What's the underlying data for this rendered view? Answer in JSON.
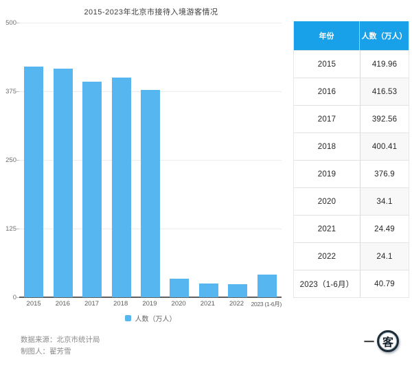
{
  "title": "2015-2023年北京市接待入境游客情况",
  "chart_data": {
    "type": "bar",
    "title": "2015-2023年北京市接待入境游客情况",
    "categories": [
      "2015",
      "2016",
      "2017",
      "2018",
      "2019",
      "2020",
      "2021",
      "2022",
      "2023 (1-6月)"
    ],
    "values": [
      419.96,
      416.53,
      392.56,
      400.41,
      376.9,
      34.1,
      24.49,
      24.1,
      40.79
    ],
    "xlabel": "",
    "ylabel": "",
    "ylim": [
      0,
      500
    ],
    "yticks": [
      0,
      125,
      250,
      375,
      500
    ],
    "grid": true,
    "legend": [
      "人数（万人）"
    ],
    "legend_position": "bottom",
    "bar_color": "#55b6f0"
  },
  "legend": {
    "label": "人数（万人）"
  },
  "table": {
    "header_bg": "#18a0e8",
    "headers": [
      "年份",
      "人数（万人）"
    ],
    "rows": [
      [
        "2015",
        "419.96"
      ],
      [
        "2016",
        "416.53"
      ],
      [
        "2017",
        "392.56"
      ],
      [
        "2018",
        "400.41"
      ],
      [
        "2019",
        "376.9"
      ],
      [
        "2020",
        "34.1"
      ],
      [
        "2021",
        "24.49"
      ],
      [
        "2022",
        "24.1"
      ],
      [
        "2023（1-6月）",
        "40.79"
      ]
    ]
  },
  "footer": {
    "source": "数据来源：北京市统计局",
    "author": "制图人：翟芳雪"
  },
  "logo": {
    "dash": "一",
    "circle_char": "客"
  }
}
